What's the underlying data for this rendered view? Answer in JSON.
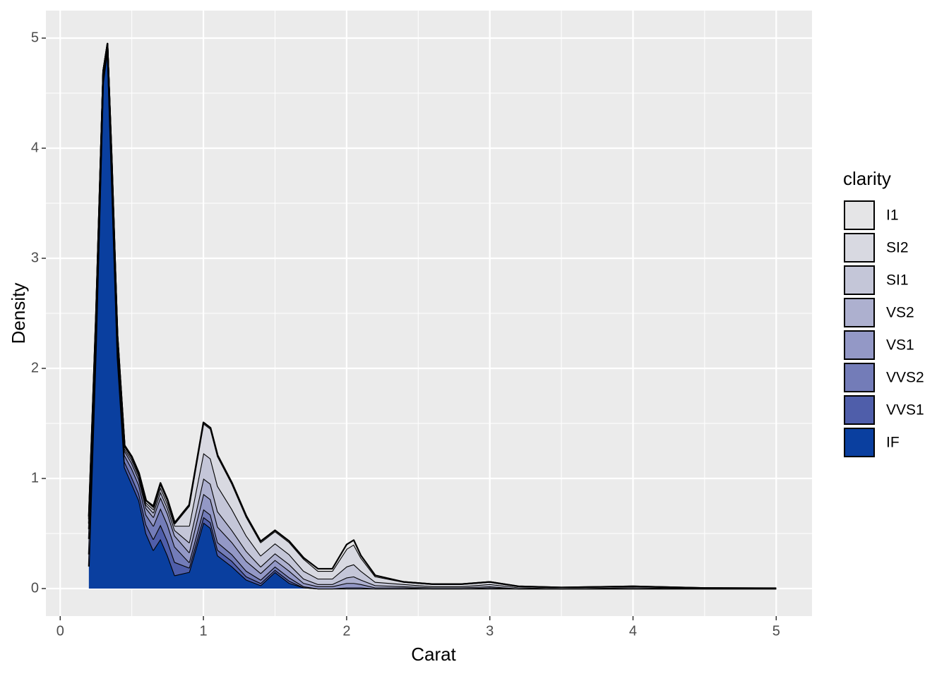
{
  "chart_data": {
    "type": "stacked-density",
    "x_label": "Carat",
    "y_label": "Density",
    "legend_title": "clarity",
    "x": [
      0.2,
      0.25,
      0.3,
      0.33,
      0.36,
      0.4,
      0.45,
      0.5,
      0.55,
      0.6,
      0.65,
      0.7,
      0.75,
      0.8,
      0.9,
      1.0,
      1.05,
      1.1,
      1.2,
      1.3,
      1.4,
      1.5,
      1.6,
      1.7,
      1.8,
      1.9,
      2.0,
      2.05,
      2.1,
      2.2,
      2.4,
      2.6,
      2.8,
      3.0,
      3.2,
      3.5,
      4.0,
      4.5,
      5.0
    ],
    "series": [
      {
        "name": "I1",
        "color": "#e5e5e7",
        "values": [
          0.01,
          0,
          0,
          0,
          0,
          0,
          0,
          0,
          0,
          0,
          0.01,
          0.01,
          0.01,
          0.01,
          0.01,
          0.01,
          0.01,
          0.01,
          0.01,
          0.01,
          0.01,
          0.01,
          0.01,
          0.01,
          0.02,
          0.02,
          0.04,
          0.04,
          0.02,
          0.01,
          0,
          0,
          0,
          0,
          0,
          0,
          0,
          0,
          0.001
        ]
      },
      {
        "name": "SI2",
        "color": "#d8d9e1",
        "values": [
          0.02,
          0.02,
          0,
          0,
          0.01,
          0.01,
          0.01,
          0.01,
          0.01,
          0.02,
          0.02,
          0.03,
          0.03,
          0.02,
          0.18,
          0.27,
          0.27,
          0.27,
          0.23,
          0.17,
          0.12,
          0.11,
          0.11,
          0.11,
          0.07,
          0.07,
          0.16,
          0.18,
          0.12,
          0.05,
          0.02,
          0.02,
          0.02,
          0.02,
          0.01,
          0.01,
          0.01,
          0.005,
          0.002
        ]
      },
      {
        "name": "SI1",
        "color": "#c4c6d8",
        "values": [
          0.04,
          0.02,
          0.01,
          0,
          0.02,
          0.02,
          0.02,
          0.02,
          0.02,
          0.02,
          0.03,
          0.04,
          0.04,
          0.04,
          0.15,
          0.23,
          0.23,
          0.23,
          0.19,
          0.14,
          0.1,
          0.09,
          0.09,
          0.07,
          0.05,
          0.05,
          0.1,
          0.11,
          0.08,
          0.03,
          0.02,
          0.01,
          0.01,
          0.02,
          0.01,
          0,
          0.01,
          0,
          0
        ]
      },
      {
        "name": "VS2",
        "color": "#adb0cf",
        "values": [
          0.05,
          0.03,
          0.01,
          0.01,
          0.02,
          0.02,
          0.02,
          0.03,
          0.03,
          0.03,
          0.04,
          0.05,
          0.05,
          0.05,
          0.09,
          0.14,
          0.14,
          0.14,
          0.11,
          0.09,
          0.06,
          0.06,
          0.06,
          0.04,
          0.02,
          0.02,
          0.05,
          0.06,
          0.04,
          0.02,
          0.01,
          0.01,
          0.01,
          0.01,
          0,
          0,
          0,
          0,
          0
        ]
      },
      {
        "name": "VS1",
        "color": "#9398c6",
        "values": [
          0.09,
          0.06,
          0.02,
          0.01,
          0.04,
          0.04,
          0.04,
          0.05,
          0.05,
          0.06,
          0.08,
          0.1,
          0.1,
          0.1,
          0.09,
          0.14,
          0.14,
          0.14,
          0.11,
          0.09,
          0.06,
          0.06,
          0.06,
          0.03,
          0.02,
          0.02,
          0.04,
          0.04,
          0.03,
          0.01,
          0.01,
          0,
          0,
          0.01,
          0,
          0,
          0,
          0,
          0
        ]
      },
      {
        "name": "VVS2",
        "color": "#737cb8",
        "values": [
          0.14,
          0.09,
          0.03,
          0.02,
          0.06,
          0.06,
          0.06,
          0.08,
          0.08,
          0.09,
          0.12,
          0.15,
          0.15,
          0.14,
          0.05,
          0.07,
          0.07,
          0.07,
          0.06,
          0.05,
          0.03,
          0.03,
          0.03,
          0.01,
          0,
          0,
          0.01,
          0.01,
          0.01,
          0,
          0,
          0,
          0,
          0,
          0,
          0,
          0,
          0,
          0
        ]
      },
      {
        "name": "VVS1",
        "color": "#4f5eaa",
        "values": [
          0.11,
          0.08,
          0.03,
          0.01,
          0.05,
          0.05,
          0.05,
          0.06,
          0.06,
          0.08,
          0.1,
          0.13,
          0.13,
          0.12,
          0.04,
          0.05,
          0.05,
          0.05,
          0.05,
          0.03,
          0.02,
          0.02,
          0.02,
          0,
          0,
          0,
          0,
          0,
          0,
          0,
          0,
          0,
          0,
          0,
          0,
          0,
          0,
          0,
          0
        ]
      },
      {
        "name": "IF",
        "color": "#0a3f9f",
        "values": [
          0.2,
          2.2,
          4.6,
          4.9,
          3.7,
          2.1,
          1.1,
          0.95,
          0.8,
          0.5,
          0.35,
          0.45,
          0.3,
          0.12,
          0.15,
          0.6,
          0.55,
          0.3,
          0.2,
          0.08,
          0.03,
          0.15,
          0.05,
          0.01,
          0,
          0,
          0,
          0,
          0,
          0,
          0,
          0,
          0,
          0,
          0,
          0,
          0,
          0,
          0
        ]
      }
    ],
    "xlim": [
      -0.1,
      5.25
    ],
    "xticks": [
      0,
      1,
      2,
      3,
      4,
      5
    ],
    "ylim": [
      -0.25,
      5.25
    ],
    "yticks": [
      0,
      1,
      2,
      3,
      4,
      5
    ],
    "grid": true
  }
}
